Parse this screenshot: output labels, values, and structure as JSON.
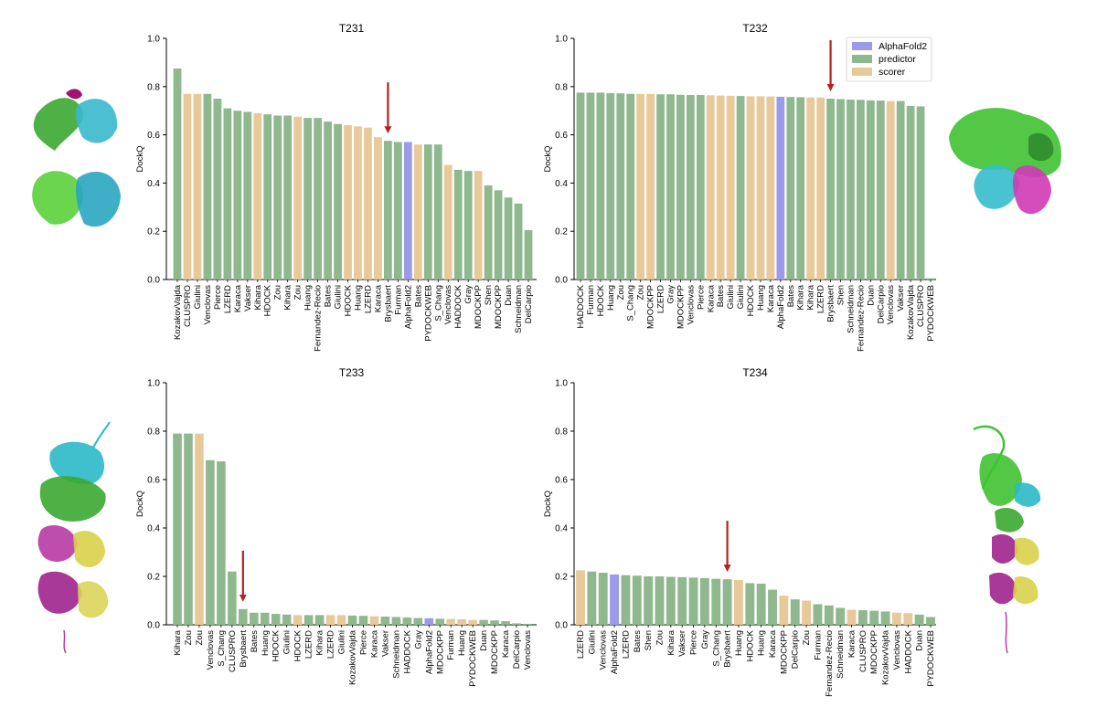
{
  "colors": {
    "AlphaFold2": "#9b9bea",
    "predictor": "#8fb88f",
    "scorer": "#e8c99a",
    "arrow": "#b22222"
  },
  "legend": [
    {
      "label": "AlphaFold2",
      "key": "AlphaFold2"
    },
    {
      "label": "predictor",
      "key": "predictor"
    },
    {
      "label": "scorer",
      "key": "scorer"
    }
  ],
  "structure_images": [
    {
      "panel": "T231",
      "icon": "protein-structure-illustration"
    },
    {
      "panel": "T232",
      "icon": "protein-structure-illustration"
    },
    {
      "panel": "T233",
      "icon": "protein-structure-illustration"
    },
    {
      "panel": "T234",
      "icon": "protein-structure-illustration"
    }
  ],
  "chart_data": [
    {
      "type": "bar",
      "title": "T231",
      "ylabel": "DockQ",
      "ylim": [
        0,
        1.0
      ],
      "yticks": [
        "0.0",
        "0.2",
        "0.4",
        "0.6",
        "0.8",
        "1.0"
      ],
      "arrow_at": "Brysbaert",
      "categories": [
        "KozakovVajda",
        "CLUSPRO",
        "Giulini",
        "Venclovas",
        "Pierce",
        "LZERD",
        "Karaca",
        "Vakser",
        "Kihara",
        "HDOCK",
        "Zou",
        "Kihara",
        "Zou",
        "Huang",
        "Fernandez-Recio",
        "Bates",
        "Giulini",
        "HDOCK",
        "Huang",
        "LZERD",
        "Karaca",
        "Brysbaert",
        "Furman",
        "AlphaFold2",
        "Bates",
        "PYDOCKWEB",
        "S_Chang",
        "Venclovas",
        "HADDOCK",
        "Gray",
        "MDOCKPP",
        "Shen",
        "MDOCKPP",
        "Duan",
        "Schneidman",
        "DelCarpio"
      ],
      "values": [
        0.875,
        0.77,
        0.77,
        0.77,
        0.75,
        0.71,
        0.7,
        0.695,
        0.69,
        0.685,
        0.68,
        0.68,
        0.675,
        0.67,
        0.67,
        0.655,
        0.645,
        0.64,
        0.635,
        0.63,
        0.59,
        0.575,
        0.57,
        0.57,
        0.56,
        0.56,
        0.56,
        0.475,
        0.455,
        0.45,
        0.45,
        0.39,
        0.37,
        0.34,
        0.315,
        0.205
      ],
      "groups": [
        "predictor",
        "scorer",
        "scorer",
        "predictor",
        "predictor",
        "predictor",
        "predictor",
        "predictor",
        "scorer",
        "predictor",
        "predictor",
        "predictor",
        "scorer",
        "predictor",
        "predictor",
        "predictor",
        "predictor",
        "scorer",
        "scorer",
        "scorer",
        "scorer",
        "predictor",
        "predictor",
        "AlphaFold2",
        "scorer",
        "predictor",
        "predictor",
        "scorer",
        "predictor",
        "predictor",
        "scorer",
        "predictor",
        "predictor",
        "predictor",
        "predictor",
        "predictor"
      ]
    },
    {
      "type": "bar",
      "title": "T232",
      "ylabel": "DockQ",
      "ylim": [
        0,
        1.0
      ],
      "yticks": [
        "0.0",
        "0.2",
        "0.4",
        "0.6",
        "0.8",
        "1.0"
      ],
      "arrow_at": "Brysbaert",
      "categories": [
        "HADDOCK",
        "Furman",
        "HDOCK",
        "Huang",
        "Zou",
        "S_Chang",
        "Zou",
        "MDOCKPP",
        "LZERD",
        "Gray",
        "MDOCKPP",
        "Venclovas",
        "Pierce",
        "Karaca",
        "Bates",
        "Giulini",
        "Giulini",
        "HDOCK",
        "Huang",
        "Karaca",
        "AlphaFold2",
        "Bates",
        "Kihara",
        "Kihara",
        "LZERD",
        "Brysbaert",
        "Shen",
        "Schneidman",
        "Fernandez-Recio",
        "Duan",
        "DelCarpio",
        "Venclovas",
        "Vakser",
        "KozakovVajda",
        "CLUSPRO",
        "PYDOCKWEB"
      ],
      "values": [
        0.775,
        0.775,
        0.775,
        0.773,
        0.772,
        0.77,
        0.77,
        0.77,
        0.768,
        0.768,
        0.766,
        0.765,
        0.765,
        0.764,
        0.763,
        0.762,
        0.761,
        0.76,
        0.76,
        0.759,
        0.758,
        0.757,
        0.756,
        0.755,
        0.755,
        0.75,
        0.748,
        0.746,
        0.745,
        0.743,
        0.742,
        0.74,
        0.74,
        0.72,
        0.718,
        0.005
      ],
      "groups": [
        "predictor",
        "predictor",
        "predictor",
        "predictor",
        "predictor",
        "predictor",
        "scorer",
        "scorer",
        "predictor",
        "predictor",
        "predictor",
        "predictor",
        "predictor",
        "scorer",
        "scorer",
        "scorer",
        "predictor",
        "scorer",
        "scorer",
        "scorer",
        "AlphaFold2",
        "predictor",
        "predictor",
        "scorer",
        "scorer",
        "predictor",
        "predictor",
        "predictor",
        "predictor",
        "predictor",
        "predictor",
        "scorer",
        "predictor",
        "predictor",
        "predictor",
        "predictor"
      ]
    },
    {
      "type": "bar",
      "title": "T233",
      "ylabel": "DockQ",
      "ylim": [
        0,
        1.0
      ],
      "yticks": [
        "0.0",
        "0.2",
        "0.4",
        "0.6",
        "0.8",
        "1.0"
      ],
      "arrow_at": "Brysbaert",
      "categories": [
        "Kihara",
        "Zou",
        "Zou",
        "Venclovas",
        "S_Chang",
        "CLUSPRO",
        "Brysbaert",
        "Bates",
        "Huang",
        "HDOCK",
        "Giulini",
        "HDOCK",
        "LZERD",
        "Kihara",
        "LZERD",
        "Giulini",
        "KozakovVajda",
        "Pierce",
        "Karaca",
        "Vakser",
        "Schneidman",
        "HADDOCK",
        "Gray",
        "AlphaFold2",
        "MDOCKPP",
        "Furman",
        "Huang",
        "PYDOCKWEB",
        "Duan",
        "MDOCKPP",
        "Karaca",
        "DelCarpio",
        "Venclovas"
      ],
      "values": [
        0.79,
        0.79,
        0.79,
        0.68,
        0.675,
        0.22,
        0.065,
        0.05,
        0.05,
        0.045,
        0.042,
        0.04,
        0.04,
        0.04,
        0.04,
        0.04,
        0.038,
        0.037,
        0.035,
        0.034,
        0.032,
        0.03,
        0.028,
        0.027,
        0.025,
        0.024,
        0.023,
        0.02,
        0.02,
        0.018,
        0.015,
        0.006,
        0.004
      ],
      "groups": [
        "predictor",
        "predictor",
        "scorer",
        "predictor",
        "predictor",
        "predictor",
        "predictor",
        "predictor",
        "predictor",
        "predictor",
        "predictor",
        "scorer",
        "predictor",
        "predictor",
        "scorer",
        "scorer",
        "predictor",
        "predictor",
        "scorer",
        "predictor",
        "predictor",
        "predictor",
        "predictor",
        "AlphaFold2",
        "predictor",
        "scorer",
        "scorer",
        "scorer",
        "predictor",
        "predictor",
        "predictor",
        "predictor",
        "predictor"
      ]
    },
    {
      "type": "bar",
      "title": "T234",
      "ylabel": "DockQ",
      "ylim": [
        0,
        1.0
      ],
      "yticks": [
        "0.0",
        "0.2",
        "0.4",
        "0.6",
        "0.8",
        "1.0"
      ],
      "arrow_at": "Brysbaert",
      "categories": [
        "LZERD",
        "Giulini",
        "Venclovas",
        "AlphaFold2",
        "LZERD",
        "Bates",
        "Shen",
        "Zou",
        "Kihara",
        "Vakser",
        "Pierce",
        "Gray",
        "S_Chang",
        "Brysbaert",
        "Huang",
        "HDOCK",
        "Huang",
        "Karaca",
        "MDOCKPP",
        "DelCarpio",
        "Zou",
        "Furman",
        "Fernandez-Recio",
        "Schneidman",
        "Karaca",
        "CLUSPRO",
        "MDOCKPP",
        "KozakovVajda",
        "Venclovas",
        "HADDOCK",
        "Duan",
        "PYDOCKWEB"
      ],
      "values": [
        0.225,
        0.22,
        0.215,
        0.208,
        0.205,
        0.203,
        0.2,
        0.2,
        0.198,
        0.197,
        0.195,
        0.193,
        0.19,
        0.188,
        0.185,
        0.172,
        0.17,
        0.145,
        0.12,
        0.105,
        0.1,
        0.085,
        0.08,
        0.07,
        0.062,
        0.06,
        0.058,
        0.055,
        0.05,
        0.048,
        0.042,
        0.032
      ],
      "groups": [
        "scorer",
        "predictor",
        "predictor",
        "AlphaFold2",
        "predictor",
        "predictor",
        "predictor",
        "predictor",
        "predictor",
        "predictor",
        "predictor",
        "predictor",
        "predictor",
        "predictor",
        "scorer",
        "predictor",
        "predictor",
        "predictor",
        "scorer",
        "predictor",
        "scorer",
        "predictor",
        "predictor",
        "predictor",
        "scorer",
        "predictor",
        "predictor",
        "predictor",
        "scorer",
        "scorer",
        "predictor",
        "predictor"
      ]
    }
  ]
}
